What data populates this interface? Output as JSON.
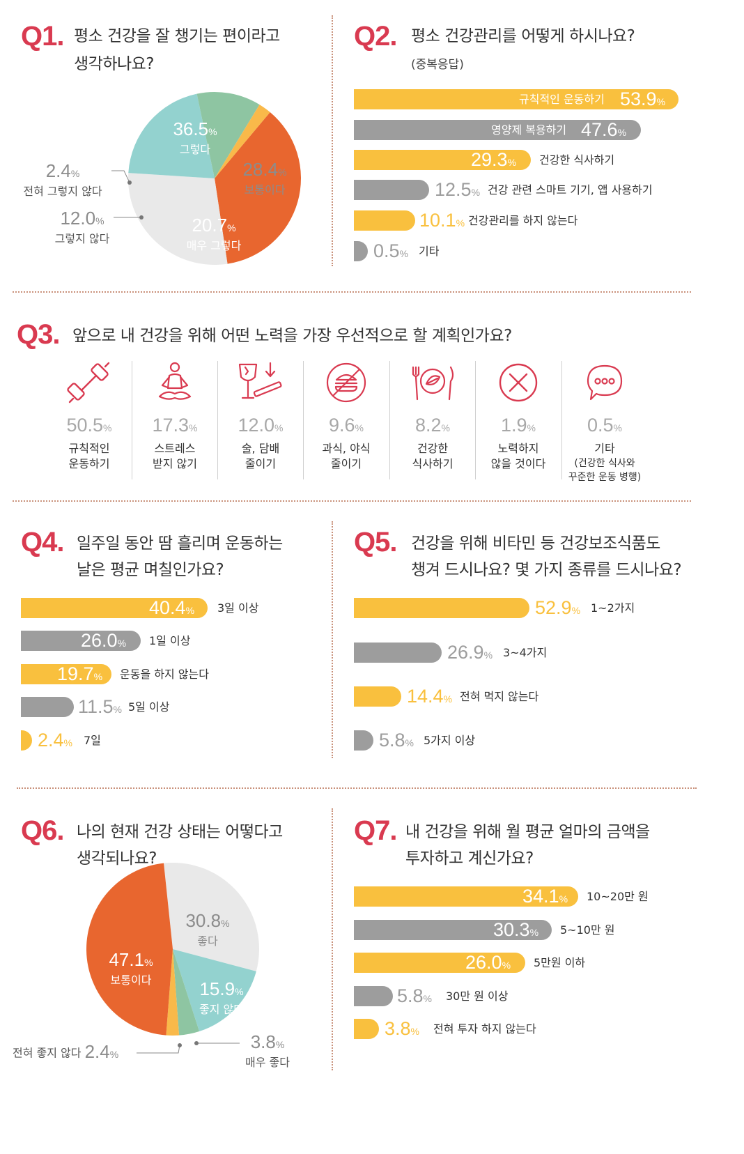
{
  "q1": {
    "num": "Q1.",
    "title_l1": "평소 건강을 잘 챙기는 편이라고",
    "title_l2": "생각하나요?",
    "slices": [
      {
        "value": "36.5",
        "label": "그렇다",
        "color": "#e8662f"
      },
      {
        "value": "28.4",
        "label": "보통이다",
        "color": "#e9e9e9"
      },
      {
        "value": "20.7",
        "label": "매우 그렇다",
        "color": "#93d2cf"
      },
      {
        "value": "12.0",
        "label": "그렇지 않다",
        "color": "#8ec5a2"
      },
      {
        "value": "2.4",
        "label": "전혀 그렇지 않다",
        "color": "#f9b94a"
      }
    ]
  },
  "q2": {
    "num": "Q2.",
    "title": "평소 건강관리를 어떻게 하시나요?",
    "subtitle": "(중복응답)",
    "bars": [
      {
        "value": "53.9",
        "label": "규칙적인 운동하기",
        "color": "yellow"
      },
      {
        "value": "47.6",
        "label": "영양제 복용하기",
        "color": "gray"
      },
      {
        "value": "29.3",
        "label": "건강한 식사하기",
        "color": "yellow"
      },
      {
        "value": "12.5",
        "label": "건강 관련 스마트 기기, 앱 사용하기",
        "color": "gray"
      },
      {
        "value": "10.1",
        "label": "건강관리를 하지 않는다",
        "color": "yellow"
      },
      {
        "value": "0.5",
        "label": "기타",
        "color": "gray"
      }
    ]
  },
  "q3": {
    "num": "Q3.",
    "title": "앞으로 내 건강을 위해 어떤 노력을 가장 우선적으로 할 계획인가요?",
    "items": [
      {
        "value": "50.5",
        "l1": "규칙적인",
        "l2": "운동하기",
        "icon": "dumbbell-icon"
      },
      {
        "value": "17.3",
        "l1": "스트레스",
        "l2": "받지 않기",
        "icon": "meditation-icon"
      },
      {
        "value": "12.0",
        "l1": "술, 담배",
        "l2": "줄이기",
        "icon": "alcohol-cigarette-icon"
      },
      {
        "value": "9.6",
        "l1": "과식, 야식",
        "l2": "줄이기",
        "icon": "no-burger-icon"
      },
      {
        "value": "8.2",
        "l1": "건강한",
        "l2": "식사하기",
        "icon": "healthy-meal-icon"
      },
      {
        "value": "1.9",
        "l1": "노력하지",
        "l2": "않을 것이다",
        "icon": "x-circle-icon"
      },
      {
        "value": "0.5",
        "l1": "기타",
        "l2": "(건강한 식사와",
        "l3": "꾸준한 운동 병행)",
        "icon": "speech-bubble-icon"
      }
    ]
  },
  "q4": {
    "num": "Q4.",
    "title_l1": "일주일 동안 땀 흘리며 운동하는",
    "title_l2": "날은 평균 며칠인가요?",
    "bars": [
      {
        "value": "40.4",
        "label": "3일 이상",
        "color": "yellow"
      },
      {
        "value": "26.0",
        "label": "1일 이상",
        "color": "gray"
      },
      {
        "value": "19.7",
        "label": "운동을 하지 않는다",
        "color": "yellow"
      },
      {
        "value": "11.5",
        "label": "5일 이상",
        "color": "gray"
      },
      {
        "value": "2.4",
        "label": "7일",
        "color": "yellow"
      }
    ]
  },
  "q5": {
    "num": "Q5.",
    "title_l1": "건강을 위해 비타민 등 건강보조식품도",
    "title_l2": "챙겨 드시나요? 몇 가지 종류를 드시나요?",
    "bars": [
      {
        "value": "52.9",
        "label": "1~2가지",
        "color": "yellow"
      },
      {
        "value": "26.9",
        "label": "3~4가지",
        "color": "gray"
      },
      {
        "value": "14.4",
        "label": "전혀 먹지 않는다",
        "color": "yellow"
      },
      {
        "value": "5.8",
        "label": "5가지 이상",
        "color": "gray"
      }
    ]
  },
  "q6": {
    "num": "Q6.",
    "title_l1": "나의 현재 건강 상태는 어떻다고",
    "title_l2": "생각되나요?",
    "slices": [
      {
        "value": "30.8",
        "label": "좋다",
        "color": "#e9e9e9"
      },
      {
        "value": "15.9",
        "label": "좋지 않다",
        "color": "#93d2cf"
      },
      {
        "value": "3.8",
        "label": "매우 좋다",
        "color": "#8ec5a2"
      },
      {
        "value": "2.4",
        "label": "전혀 좋지 않다",
        "color": "#f9b94a"
      },
      {
        "value": "47.1",
        "label": "보통이다",
        "color": "#e8662f"
      }
    ]
  },
  "q7": {
    "num": "Q7.",
    "title_l1": "내 건강을 위해 월 평균 얼마의 금액을",
    "title_l2": "투자하고 계신가요?",
    "bars": [
      {
        "value": "34.1",
        "label": "10~20만 원",
        "color": "yellow"
      },
      {
        "value": "30.3",
        "label": "5~10만 원",
        "color": "gray"
      },
      {
        "value": "26.0",
        "label": "5만원 이하",
        "color": "yellow"
      },
      {
        "value": "5.8",
        "label": "30만 원 이상",
        "color": "gray"
      },
      {
        "value": "3.8",
        "label": "전혀 투자 하지 않는다",
        "color": "yellow"
      }
    ]
  },
  "pct_sign": "%",
  "chart_data": [
    {
      "type": "pie",
      "title": "평소 건강을 잘 챙기는 편이라고 생각하나요?",
      "categories": [
        "그렇다",
        "보통이다",
        "매우 그렇다",
        "그렇지 않다",
        "전혀 그렇지 않다"
      ],
      "values": [
        36.5,
        28.4,
        20.7,
        12.0,
        2.4
      ]
    },
    {
      "type": "bar",
      "title": "평소 건강관리를 어떻게 하시나요?",
      "categories": [
        "규칙적인 운동하기",
        "영양제 복용하기",
        "건강한 식사하기",
        "건강 관련 스마트 기기, 앱 사용하기",
        "건강관리를 하지 않는다",
        "기타"
      ],
      "values": [
        53.9,
        47.6,
        29.3,
        12.5,
        10.1,
        0.5
      ]
    },
    {
      "type": "table",
      "title": "앞으로 내 건강을 위해 어떤 노력을 가장 우선적으로 할 계획인가요?",
      "categories": [
        "규칙적인 운동하기",
        "스트레스 받지 않기",
        "술, 담배 줄이기",
        "과식, 야식 줄이기",
        "건강한 식사하기",
        "노력하지 않을 것이다",
        "기타"
      ],
      "values": [
        50.5,
        17.3,
        12.0,
        9.6,
        8.2,
        1.9,
        0.5
      ]
    },
    {
      "type": "bar",
      "title": "일주일 동안 땀 흘리며 운동하는 날은 평균 며칠인가요?",
      "categories": [
        "3일 이상",
        "1일 이상",
        "운동을 하지 않는다",
        "5일 이상",
        "7일"
      ],
      "values": [
        40.4,
        26.0,
        19.7,
        11.5,
        2.4
      ]
    },
    {
      "type": "bar",
      "title": "건강을 위해 비타민 등 건강보조식품도 챙겨 드시나요? 몇 가지 종류를 드시나요?",
      "categories": [
        "1~2가지",
        "3~4가지",
        "전혀 먹지 않는다",
        "5가지 이상"
      ],
      "values": [
        52.9,
        26.9,
        14.4,
        5.8
      ]
    },
    {
      "type": "pie",
      "title": "나의 현재 건강 상태는 어떻다고 생각되나요?",
      "categories": [
        "좋다",
        "좋지 않다",
        "매우 좋다",
        "전혀 좋지 않다",
        "보통이다"
      ],
      "values": [
        30.8,
        15.9,
        3.8,
        2.4,
        47.1
      ]
    },
    {
      "type": "bar",
      "title": "내 건강을 위해 월 평균 얼마의 금액을 투자하고 계신가요?",
      "categories": [
        "10~20만 원",
        "5~10만 원",
        "5만원 이하",
        "30만 원 이상",
        "전혀 투자 하지 않는다"
      ],
      "values": [
        34.1,
        30.3,
        26.0,
        5.8,
        3.8
      ]
    }
  ]
}
